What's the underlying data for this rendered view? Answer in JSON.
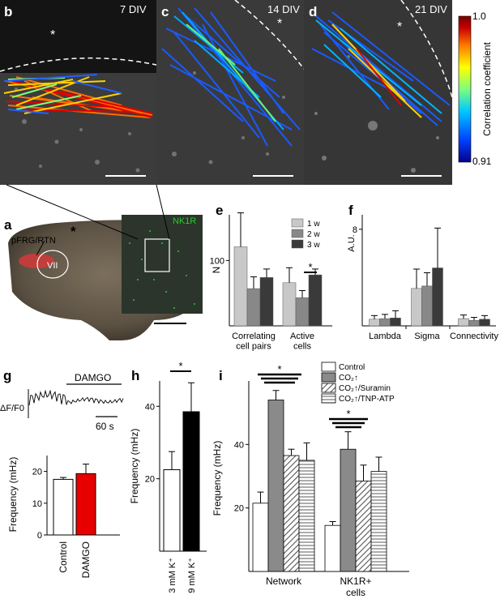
{
  "colors": {
    "gray_light": "#c8c8c8",
    "gray_mid": "#888888",
    "gray_dark": "#3a3a3a",
    "red": "#e60000",
    "black": "#000000",
    "nk1r_green": "#1fd21f",
    "pfrg_red": "#d23a3a",
    "colorbar_stops": [
      "#08008a",
      "#0040ff",
      "#00c8ff",
      "#7dff7d",
      "#ffff00",
      "#ff7a00",
      "#c80000",
      "#780000"
    ]
  },
  "panels": {
    "b": {
      "letter": "b",
      "time_label": "7 DIV",
      "star": "*"
    },
    "c": {
      "letter": "c",
      "time_label": "14 DIV",
      "star": "*"
    },
    "d": {
      "letter": "d",
      "time_label": "21 DIV",
      "star": "*"
    },
    "colorbar": {
      "label": "Correlation coefficient",
      "max_label": "1.0",
      "min_label": "0.91"
    },
    "a": {
      "letter": "a",
      "region_label": "pFRG/RTN",
      "nucleus_label": "VII",
      "marker_label": "NK1R",
      "star": "*"
    }
  },
  "chart_data": [
    {
      "id": "e",
      "type": "bar",
      "ylabel": "N",
      "ylim": [
        0,
        170
      ],
      "yticks": [
        100
      ],
      "categories": [
        "Correlating\ncell pairs",
        "Active\ncells"
      ],
      "series": [
        {
          "name": "1 w",
          "values": [
            121,
            66
          ],
          "errors": [
            52,
            23
          ],
          "color": "#c8c8c8"
        },
        {
          "name": "2 w",
          "values": [
            57,
            43
          ],
          "errors": [
            18,
            11
          ],
          "color": "#888888"
        },
        {
          "name": "3 w",
          "values": [
            74,
            78
          ],
          "errors": [
            13,
            9
          ],
          "color": "#3a3a3a"
        }
      ],
      "significance": [
        {
          "between": [
            "2 w",
            "3 w"
          ],
          "category": "Active\ncells",
          "label": "*"
        }
      ],
      "legend_position": "top-right",
      "grid": false
    },
    {
      "id": "f",
      "type": "bar",
      "ylabel": "A.U.",
      "ylim": [
        0,
        9.2
      ],
      "yticks": [
        8
      ],
      "categories": [
        "Lambda",
        "Sigma",
        "Connectivity"
      ],
      "series": [
        {
          "name": "1 w",
          "values": [
            0.55,
            3.1,
            0.6
          ],
          "errors": [
            0.3,
            1.6,
            0.3
          ],
          "color": "#c8c8c8"
        },
        {
          "name": "2 w",
          "values": [
            0.6,
            3.3,
            0.45
          ],
          "errors": [
            0.35,
            1.1,
            0.25
          ],
          "color": "#888888"
        },
        {
          "name": "3 w",
          "values": [
            0.65,
            4.8,
            0.55
          ],
          "errors": [
            0.6,
            3.3,
            0.3
          ],
          "color": "#3a3a3a"
        }
      ],
      "grid": false
    },
    {
      "id": "g_trace",
      "type": "line",
      "ylabel": "ΔF/F0",
      "annotation": "DAMGO",
      "scalebar_label": "60 s",
      "grid": false
    },
    {
      "id": "g",
      "type": "bar",
      "ylabel": "Frequency (mHz)",
      "ylim": [
        0,
        25
      ],
      "yticks": [
        0,
        10,
        20
      ],
      "categories": [
        "Control",
        "DAMGO"
      ],
      "values": [
        17.5,
        19.3
      ],
      "errors": [
        0.6,
        3.0
      ],
      "colors": [
        "#ffffff",
        "#e60000"
      ],
      "grid": false
    },
    {
      "id": "h",
      "type": "bar",
      "ylabel": "Frequency (mHz)",
      "ylim": [
        0,
        47
      ],
      "yticks": [
        20,
        40
      ],
      "categories": [
        "3 mM K⁺",
        "9 mM K⁺"
      ],
      "values": [
        22.5,
        38.5
      ],
      "errors": [
        5,
        8
      ],
      "colors": [
        "#ffffff",
        "#000000"
      ],
      "significance": [
        {
          "label": "*"
        }
      ],
      "grid": false
    },
    {
      "id": "i",
      "type": "bar",
      "ylabel": "Frequency (mHz)",
      "ylim": [
        0,
        60
      ],
      "yticks": [
        20,
        40
      ],
      "categories": [
        "Network",
        "NK1R+\ncells"
      ],
      "series": [
        {
          "name": "Control",
          "values": [
            21.5,
            14.5
          ],
          "errors": [
            3.5,
            1.2
          ],
          "fill": "white"
        },
        {
          "name": "CO₂↑",
          "values": [
            54,
            38.5
          ],
          "errors": [
            3,
            5.5
          ],
          "fill": "gray"
        },
        {
          "name": "CO₂↑/Suramin",
          "values": [
            36.5,
            28.5
          ],
          "errors": [
            2,
            5
          ],
          "fill": "hatch"
        },
        {
          "name": "CO₂↑/TNP-ATP",
          "values": [
            35,
            31.5
          ],
          "errors": [
            5.5,
            4.5
          ],
          "fill": "stripes"
        }
      ],
      "significance": [
        {
          "category": "Network",
          "label": "*"
        },
        {
          "category": "NK1R+\ncells",
          "label": "*"
        }
      ],
      "legend_position": "top-right",
      "grid": false
    }
  ]
}
